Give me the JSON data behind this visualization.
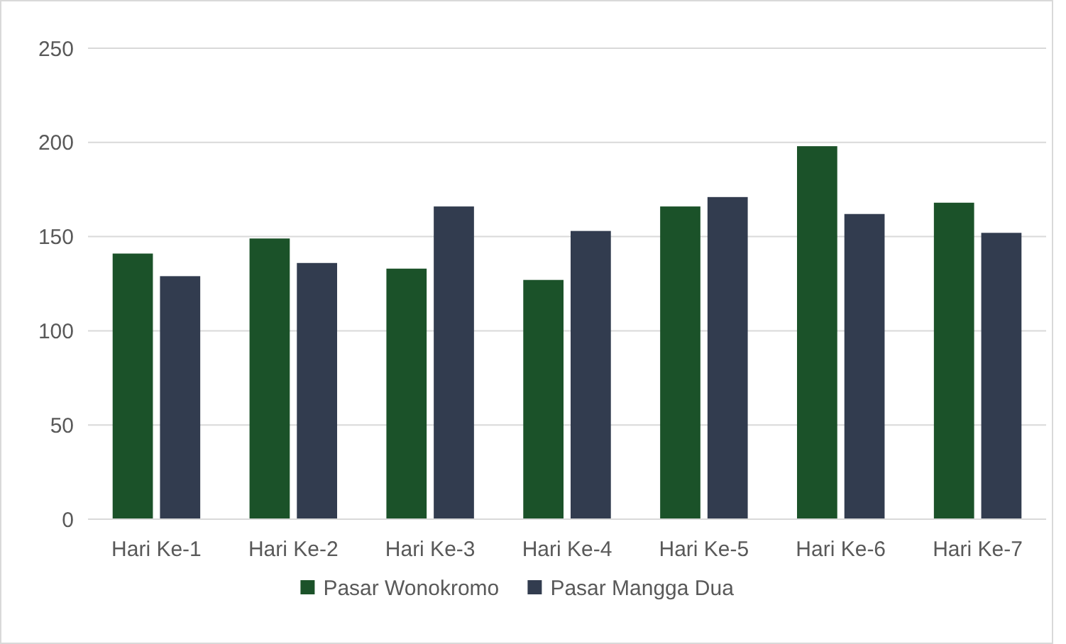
{
  "chart_data": {
    "type": "bar",
    "categories": [
      "Hari Ke-1",
      "Hari Ke-2",
      "Hari Ke-3",
      "Hari Ke-4",
      "Hari Ke-5",
      "Hari Ke-6",
      "Hari Ke-7"
    ],
    "series": [
      {
        "name": "Pasar Wonokromo",
        "color": "#1b5229",
        "values": [
          141,
          149,
          133,
          127,
          166,
          198,
          168
        ]
      },
      {
        "name": "Pasar Mangga Dua",
        "color": "#323c4f",
        "values": [
          129,
          136,
          166,
          153,
          171,
          162,
          152
        ]
      }
    ],
    "ylim": [
      0,
      250
    ],
    "yticks": [
      0,
      50,
      100,
      150,
      200,
      250
    ],
    "grid": "y",
    "legend": "bottom"
  }
}
